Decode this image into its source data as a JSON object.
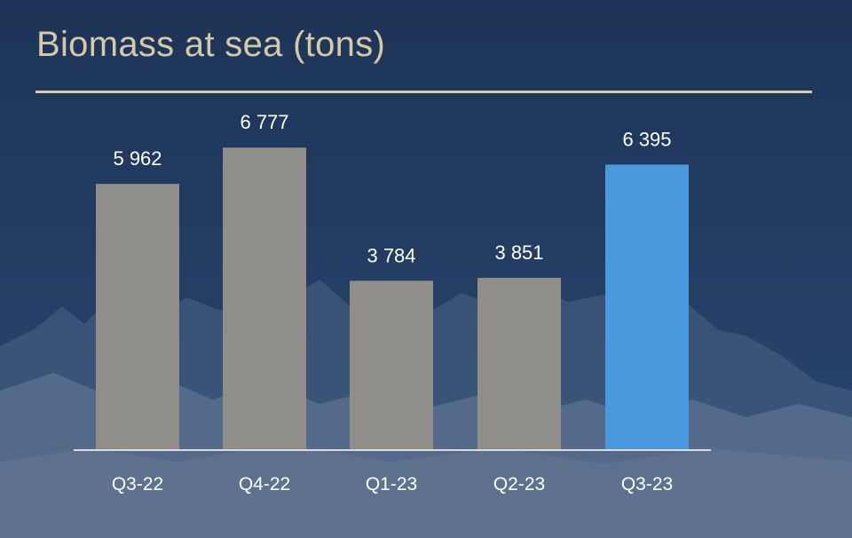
{
  "title": "Biomass at sea (tons)",
  "chart_data": {
    "type": "bar",
    "title": "Biomass at sea (tons)",
    "categories": [
      "Q3-22",
      "Q4-22",
      "Q1-23",
      "Q2-23",
      "Q3-23"
    ],
    "values": [
      5962,
      6777,
      3784,
      3851,
      6395
    ],
    "value_labels": [
      "5 962",
      "6 777",
      "3 784",
      "3 851",
      "6 395"
    ],
    "ylim": [
      0,
      7500
    ],
    "grid": false,
    "legend": "none",
    "colors": {
      "default_bar": "#8f8e88",
      "highlight_bar": "#4a99df",
      "highlight_index": 4,
      "axis": "#dcdcdc",
      "text": "#ffffff",
      "title": "#d6c9a6"
    }
  }
}
